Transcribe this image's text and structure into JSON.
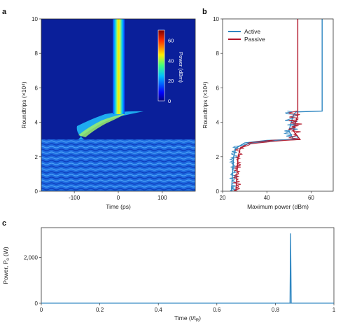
{
  "chart_data": [
    {
      "panel": "a",
      "type": "heatmap",
      "xlabel": "Time (ps)",
      "ylabel": "Roundtrips (×10⁴)",
      "xlim": [
        -175,
        175
      ],
      "ylim": [
        0,
        10
      ],
      "xticks": [
        -100,
        0,
        100
      ],
      "yticks": [
        0,
        2,
        4,
        6,
        8,
        10
      ],
      "colorbar": {
        "label": "Power (dBm)",
        "ticks": [
          0,
          20,
          40,
          60
        ],
        "range": [
          0,
          70
        ]
      },
      "features": [
        {
          "region": "noise background",
          "y_range": [
            0,
            3.0
          ],
          "power_dBm": 15
        },
        {
          "region": "transition",
          "y_range": [
            3.0,
            4.65
          ],
          "power_dBm": 40
        },
        {
          "region": "stable soliton",
          "x_center": 0,
          "y_range": [
            4.65,
            10
          ],
          "power_dBm": 65
        }
      ]
    },
    {
      "panel": "b",
      "type": "line",
      "xlabel": "Maximum power (dBm)",
      "ylabel": "Roundtrips (×10⁴)",
      "xlim": [
        20,
        70
      ],
      "ylim": [
        0,
        10
      ],
      "xticks": [
        20,
        40,
        60
      ],
      "yticks": [
        0,
        2,
        4,
        6,
        8,
        10
      ],
      "legend_position": "top-left",
      "series": [
        {
          "name": "Active",
          "color": "#2e86c1",
          "points": [
            [
              24,
              0
            ],
            [
              24.5,
              1
            ],
            [
              25,
              2
            ],
            [
              26,
              2.5
            ],
            [
              30,
              2.8
            ],
            [
              40,
              2.95
            ],
            [
              52,
              3.0
            ],
            [
              50,
              3.5
            ],
            [
              51,
              4.0
            ],
            [
              52,
              4.4
            ],
            [
              53,
              4.6
            ],
            [
              65,
              4.65
            ],
            [
              65,
              10
            ]
          ]
        },
        {
          "name": "Passive",
          "color": "#b2182b",
          "points": [
            [
              26,
              0
            ],
            [
              26.5,
              1
            ],
            [
              27,
              2
            ],
            [
              28,
              2.5
            ],
            [
              32,
              2.8
            ],
            [
              42,
              2.95
            ],
            [
              55,
              3.0
            ],
            [
              52,
              3.5
            ],
            [
              53,
              4.0
            ],
            [
              54,
              4.4
            ],
            [
              54,
              4.65
            ],
            [
              54,
              10
            ]
          ]
        }
      ]
    },
    {
      "panel": "c",
      "type": "line",
      "xlabel": "Time (t/t",
      "xlabel_sub": "R",
      "xlabel_end": ")",
      "ylabel": "Power, P",
      "ylabel_sub": "o",
      "ylabel_end": " (W)",
      "xlim": [
        0,
        1.0
      ],
      "ylim": [
        0,
        3300
      ],
      "xticks": [
        0,
        0.2,
        0.4,
        0.6,
        0.8,
        1.0
      ],
      "yticks": [
        0,
        2000
      ],
      "ytick_labels": [
        "0",
        "2,000"
      ],
      "series": [
        {
          "color": "#2e86c1",
          "points": [
            [
              0,
              5
            ],
            [
              0.85,
              5
            ],
            [
              0.852,
              3050
            ],
            [
              0.854,
              5
            ],
            [
              1.0,
              5
            ]
          ]
        }
      ]
    }
  ],
  "panel_labels": {
    "a": "a",
    "b": "b",
    "c": "c"
  }
}
